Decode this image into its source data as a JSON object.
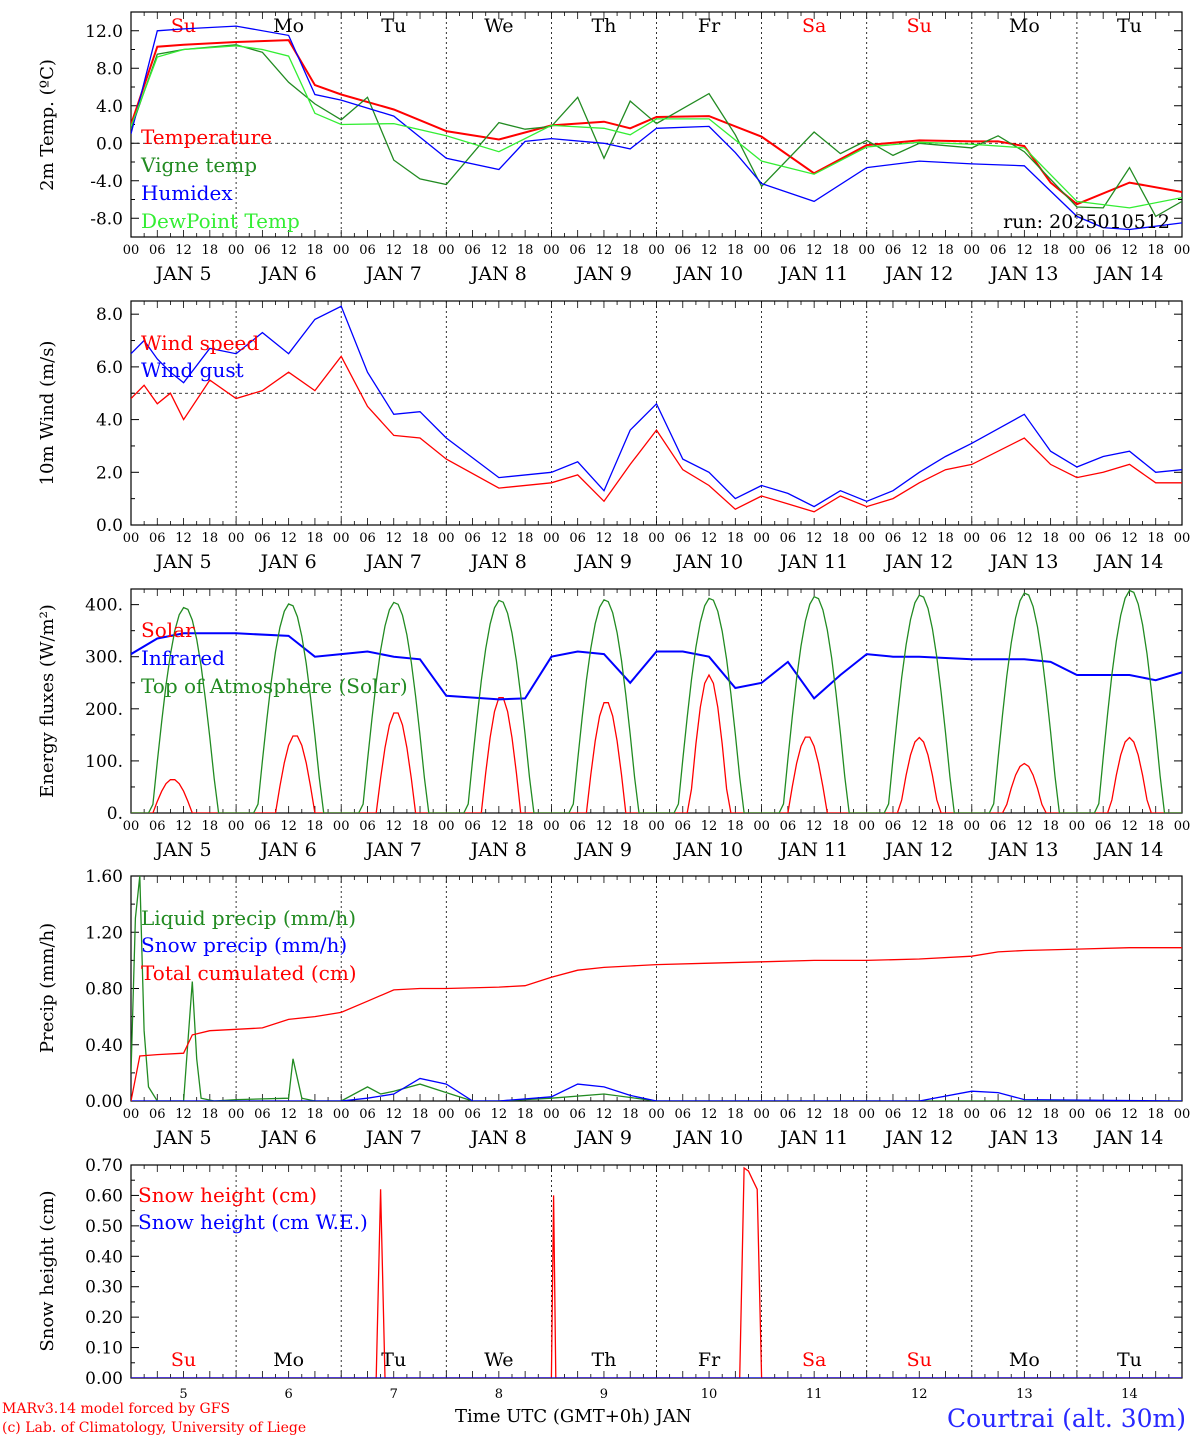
{
  "colors": {
    "red": "#ff0000",
    "green": "#228b22",
    "blue": "#0000ff",
    "lime": "#33ee33",
    "grid": "#000000"
  },
  "days": {
    "weekday": [
      "Su",
      "Mo",
      "Tu",
      "We",
      "Th",
      "Fr",
      "Sa",
      "Su",
      "Mo",
      "Tu"
    ],
    "weekday_color": [
      "red",
      "black",
      "black",
      "black",
      "black",
      "black",
      "red",
      "red",
      "black",
      "black"
    ],
    "date_label": [
      "JAN  5",
      "JAN  6",
      "JAN  7",
      "JAN  8",
      "JAN  9",
      "JAN 10",
      "JAN 11",
      "JAN 12",
      "JAN 13",
      "JAN 14"
    ],
    "day_number": [
      "5",
      "6",
      "7",
      "8",
      "9",
      "10",
      "11",
      "12",
      "13",
      "14"
    ],
    "hour_ticks": [
      "00",
      "06",
      "12",
      "18"
    ],
    "final_hour": "00"
  },
  "footer": {
    "model": "MARv3.14 model forced by GFS",
    "lab": "(c) Lab. of Climatology, University of Liege",
    "xlabel": "Time UTC (GMT+0h) JAN",
    "station": "Courtrai (alt. 30m)"
  },
  "chart_data": [
    {
      "type": "line",
      "ylabel": "2m Temp. (ºC)",
      "ylim": [
        -10,
        14
      ],
      "yticks": [
        "12.0",
        "8.0",
        "4.0",
        "0.0",
        "-4.0",
        "-8.0"
      ],
      "ytick_values": [
        12,
        8,
        4,
        0,
        -4,
        -8
      ],
      "ref_line": 0,
      "run_label": "run: 2025010512",
      "x_unit": "hours since JAN 5 00 UTC",
      "series": [
        {
          "name": "Temperature",
          "color": "red",
          "x": [
            0,
            6,
            12,
            24,
            36,
            42,
            48,
            60,
            72,
            84,
            96,
            108,
            114,
            120,
            132,
            144,
            156,
            168,
            180,
            192,
            198,
            204,
            210,
            216,
            228,
            240
          ],
          "y": [
            2,
            10.3,
            10.5,
            10.8,
            11,
            6.2,
            5.2,
            3.6,
            1.3,
            0.4,
            1.9,
            2.3,
            1.6,
            2.8,
            2.9,
            0.7,
            -3.2,
            -0.2,
            0.3,
            0.2,
            0.2,
            -0.3,
            -4.2,
            -6.5,
            -4.2,
            -5.2
          ]
        },
        {
          "name": "Vigne temp",
          "color": "green",
          "x": [
            0,
            6,
            12,
            24,
            30,
            36,
            42,
            48,
            54,
            60,
            66,
            72,
            84,
            90,
            96,
            102,
            108,
            114,
            120,
            132,
            138,
            144,
            156,
            162,
            168,
            174,
            180,
            192,
            198,
            204,
            216,
            222,
            228,
            234,
            240
          ],
          "y": [
            1.5,
            9.5,
            10,
            10.5,
            9.7,
            6.5,
            4.2,
            2.5,
            4.9,
            -1.8,
            -3.8,
            -4.4,
            2.2,
            1.5,
            1.8,
            4.9,
            -1.6,
            4.5,
            2.1,
            5.3,
            0.9,
            -4.6,
            1.2,
            -1.1,
            0.3,
            -1.3,
            0,
            -0.5,
            0.8,
            -0.9,
            -6.8,
            -6.9,
            -2.6,
            -7.8,
            -6.2
          ]
        },
        {
          "name": "Humidex",
          "color": "blue",
          "x": [
            0,
            6,
            12,
            24,
            36,
            42,
            48,
            60,
            72,
            84,
            90,
            96,
            108,
            114,
            120,
            132,
            138,
            144,
            156,
            168,
            180,
            192,
            204,
            216,
            222,
            228,
            240
          ],
          "y": [
            1,
            12,
            12.2,
            12.5,
            11.5,
            5.2,
            4.6,
            2.9,
            -1.6,
            -2.8,
            0.2,
            0.5,
            0,
            -0.6,
            1.6,
            1.8,
            -1,
            -4.3,
            -6.2,
            -2.6,
            -1.9,
            -2.2,
            -2.4,
            -7.8,
            -9,
            -9.2,
            -8.5
          ]
        },
        {
          "name": "DewPoint Temp",
          "color": "lime",
          "x": [
            0,
            6,
            12,
            24,
            30,
            36,
            42,
            48,
            60,
            72,
            84,
            96,
            108,
            114,
            120,
            132,
            144,
            156,
            168,
            180,
            192,
            204,
            216,
            228,
            240
          ],
          "y": [
            1.8,
            9.2,
            10,
            10.4,
            10,
            9.3,
            3.2,
            2,
            2.1,
            0.8,
            -0.9,
            1.9,
            1.6,
            0.9,
            2.6,
            2.6,
            -1.9,
            -3.3,
            -0.4,
            0.1,
            -0.1,
            -0.5,
            -6.2,
            -6.9,
            -5.8
          ]
        }
      ]
    },
    {
      "type": "line",
      "ylabel": "10m Wind (m/s)",
      "ylim": [
        0,
        8.5
      ],
      "yticks": [
        "8.0",
        "6.0",
        "4.0",
        "2.0",
        "0.0"
      ],
      "ytick_values": [
        8,
        6,
        4,
        2,
        0
      ],
      "ref_line": 5,
      "series": [
        {
          "name": "Wind speed",
          "color": "red",
          "x": [
            0,
            3,
            6,
            9,
            12,
            18,
            24,
            30,
            36,
            42,
            48,
            54,
            60,
            66,
            72,
            84,
            96,
            102,
            108,
            114,
            120,
            126,
            132,
            138,
            144,
            150,
            156,
            162,
            168,
            174,
            180,
            186,
            192,
            204,
            210,
            216,
            222,
            228,
            234,
            240
          ],
          "y": [
            4.8,
            5.3,
            4.6,
            5,
            4,
            5.5,
            4.8,
            5.1,
            5.8,
            5.1,
            6.4,
            4.5,
            3.4,
            3.3,
            2.5,
            1.4,
            1.6,
            1.9,
            0.9,
            2.3,
            3.6,
            2.1,
            1.5,
            0.6,
            1.1,
            0.8,
            0.5,
            1.1,
            0.7,
            1,
            1.6,
            2.1,
            2.3,
            3.3,
            2.3,
            1.8,
            2,
            2.3,
            1.6,
            1.6
          ]
        },
        {
          "name": "Wind gust",
          "color": "blue",
          "x": [
            0,
            3,
            6,
            9,
            12,
            18,
            24,
            30,
            36,
            42,
            48,
            54,
            60,
            66,
            72,
            84,
            96,
            102,
            108,
            114,
            120,
            126,
            132,
            138,
            144,
            150,
            156,
            162,
            168,
            174,
            180,
            186,
            192,
            204,
            210,
            216,
            222,
            228,
            234,
            240
          ],
          "y": [
            6.5,
            7,
            6.3,
            5.8,
            5.4,
            6.7,
            6.5,
            7.3,
            6.5,
            7.8,
            8.3,
            5.8,
            4.2,
            4.3,
            3.3,
            1.8,
            2,
            2.4,
            1.3,
            3.6,
            4.6,
            2.5,
            2,
            1,
            1.5,
            1.2,
            0.7,
            1.3,
            0.9,
            1.3,
            2,
            2.6,
            3.1,
            4.2,
            2.8,
            2.2,
            2.6,
            2.8,
            2,
            2.1
          ]
        }
      ]
    },
    {
      "type": "line",
      "ylabel": "Energy fluxes (W/m²)",
      "ylim": [
        0,
        430
      ],
      "yticks": [
        "400.",
        "300.",
        "200.",
        "100.",
        "0."
      ],
      "ytick_values": [
        400,
        300,
        200,
        100,
        0
      ],
      "series": [
        {
          "name": "Solar",
          "color": "red",
          "peaks_day": [
            0,
            1,
            2,
            3,
            4,
            5,
            6,
            7,
            8,
            9
          ],
          "peaks_hour": [
            9.5,
            13.5,
            12.5,
            12.5,
            12.5,
            12,
            10.5,
            12,
            12,
            12
          ],
          "peaks": [
            65,
            150,
            195,
            225,
            215,
            265,
            148,
            145,
            95,
            145
          ]
        },
        {
          "name": "Infrared",
          "color": "blue",
          "x": [
            0,
            6,
            12,
            24,
            36,
            42,
            48,
            54,
            60,
            66,
            72,
            84,
            90,
            96,
            102,
            108,
            114,
            120,
            126,
            132,
            138,
            144,
            150,
            156,
            162,
            168,
            174,
            180,
            192,
            204,
            210,
            216,
            222,
            228,
            234,
            240
          ],
          "y": [
            305,
            335,
            345,
            345,
            340,
            300,
            305,
            310,
            300,
            295,
            225,
            218,
            220,
            300,
            310,
            305,
            250,
            310,
            310,
            300,
            240,
            250,
            290,
            220,
            265,
            305,
            300,
            300,
            295,
            295,
            290,
            265,
            265,
            265,
            255,
            270
          ]
        },
        {
          "name": "Top of Atmosphere (Solar)",
          "color": "green",
          "peaks_day": [
            0,
            1,
            2,
            3,
            4,
            5,
            6,
            7,
            8,
            9
          ],
          "peaks": [
            395,
            402,
            405,
            409,
            410,
            413,
            416,
            419,
            423,
            428
          ]
        }
      ]
    },
    {
      "type": "line",
      "ylabel": "Precip (mm/h)",
      "ylim": [
        0,
        1.6
      ],
      "yticks": [
        "1.60",
        "1.20",
        "0.80",
        "0.40",
        "0.00"
      ],
      "ytick_values": [
        1.6,
        1.2,
        0.8,
        0.4,
        0
      ],
      "series": [
        {
          "name": "Liquid precip (mm/h)",
          "color": "green",
          "x": [
            0,
            1,
            2,
            3,
            4,
            6,
            9,
            12,
            14,
            15,
            16,
            19,
            24,
            36,
            37,
            39,
            42,
            48,
            54,
            57,
            60,
            66,
            72,
            78,
            84,
            96,
            108,
            120,
            168,
            192,
            240
          ],
          "y": [
            0.2,
            1.3,
            1.6,
            0.5,
            0.1,
            0,
            0,
            0,
            0.85,
            0.3,
            0.02,
            0,
            0.01,
            0.02,
            0.3,
            0.02,
            0,
            0,
            0.1,
            0.05,
            0.07,
            0.12,
            0.06,
            0,
            0,
            0.02,
            0.05,
            0,
            0,
            0,
            0
          ]
        },
        {
          "name": "Snow precip (mm/h)",
          "color": "blue",
          "x": [
            0,
            48,
            54,
            60,
            66,
            72,
            78,
            84,
            96,
            102,
            108,
            114,
            120,
            180,
            192,
            198,
            204,
            240
          ],
          "y": [
            0,
            0,
            0.02,
            0.05,
            0.16,
            0.12,
            0,
            0,
            0.03,
            0.12,
            0.1,
            0.04,
            0,
            0,
            0.07,
            0.06,
            0.01,
            0
          ]
        },
        {
          "name": "Total cumulated (cm)",
          "color": "red",
          "x": [
            0,
            2,
            6,
            12,
            14,
            18,
            24,
            30,
            36,
            42,
            48,
            54,
            60,
            66,
            72,
            84,
            90,
            96,
            102,
            108,
            114,
            120,
            132,
            144,
            156,
            168,
            180,
            192,
            198,
            204,
            216,
            228,
            240
          ],
          "y": [
            0,
            0.32,
            0.33,
            0.34,
            0.47,
            0.5,
            0.51,
            0.52,
            0.58,
            0.6,
            0.63,
            0.71,
            0.79,
            0.8,
            0.8,
            0.81,
            0.82,
            0.88,
            0.93,
            0.95,
            0.96,
            0.97,
            0.98,
            0.99,
            1.0,
            1.0,
            1.01,
            1.03,
            1.06,
            1.07,
            1.08,
            1.09,
            1.09
          ]
        }
      ]
    },
    {
      "type": "line",
      "ylabel": "Snow height (cm)",
      "ylim": [
        0,
        0.7
      ],
      "yticks": [
        "0.70",
        "0.60",
        "0.50",
        "0.40",
        "0.30",
        "0.20",
        "0.10",
        "0.00"
      ],
      "ytick_values": [
        0.7,
        0.6,
        0.5,
        0.4,
        0.3,
        0.2,
        0.1,
        0
      ],
      "series": [
        {
          "name": "Snow height (cm)",
          "color": "red",
          "x": [
            0,
            56,
            57,
            58,
            96,
            96.5,
            97,
            139,
            140,
            141,
            142,
            143,
            144,
            240
          ],
          "y": [
            0,
            0,
            0.62,
            0,
            0,
            0.6,
            0,
            0,
            0.69,
            0.68,
            0.65,
            0.62,
            0,
            0
          ]
        },
        {
          "name": "Snow height (cm W.E.)",
          "color": "blue",
          "x": [
            0,
            240
          ],
          "y": [
            0,
            0
          ]
        }
      ]
    }
  ]
}
